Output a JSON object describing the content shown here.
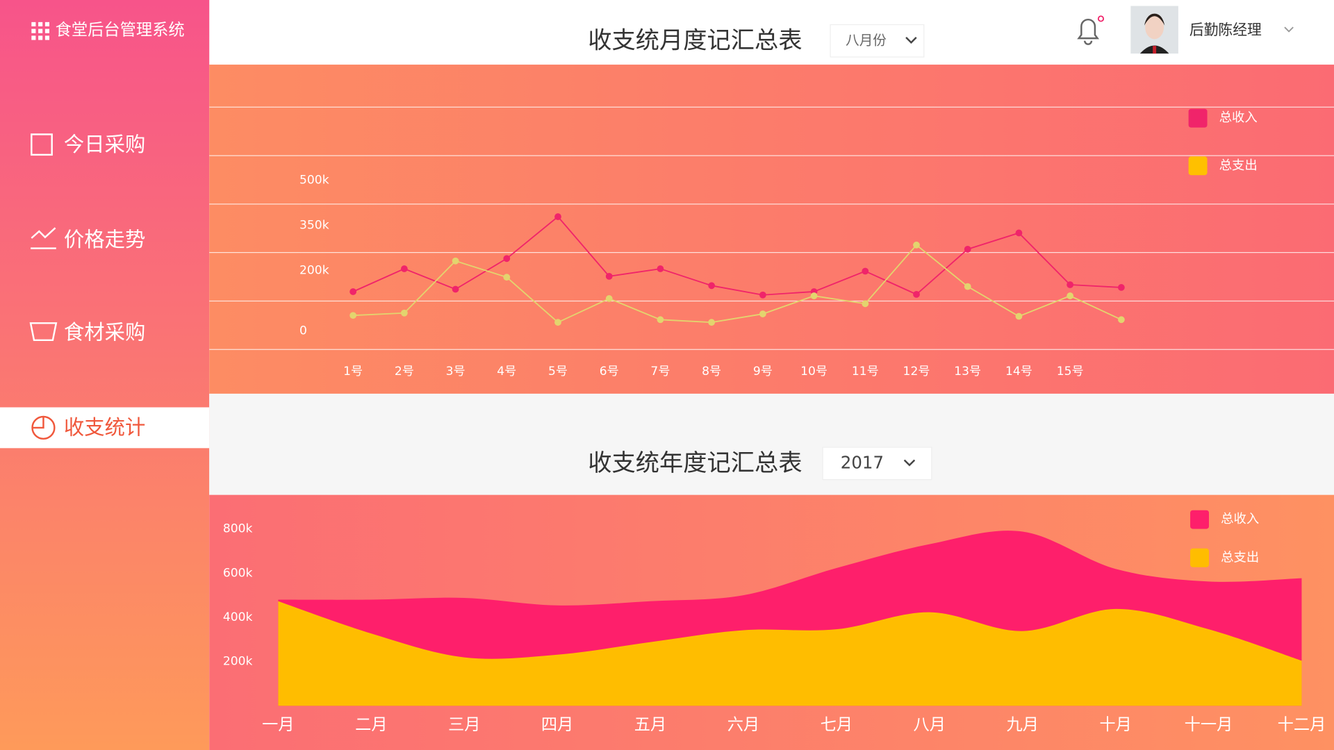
{
  "sidebar": {
    "logo": "食堂后台管理系统",
    "menu": [
      "今日采购",
      "价格走势",
      "食材采购",
      "收支统计"
    ]
  },
  "header": {
    "title": "收支统月度记汇总表",
    "month_select": "八月份",
    "user": "后勤陈经理"
  },
  "year_section": {
    "title": "收支统年度记汇总表",
    "year_select": "2017"
  },
  "chart_data": [
    {
      "type": "line",
      "categories": [
        "1号",
        "2号",
        "3号",
        "4号",
        "5号",
        "6号",
        "7号",
        "8号",
        "9号",
        "10号",
        "11号",
        "12号",
        "13号",
        "14号",
        "15号",
        null
      ],
      "series": [
        {
          "name": "总收入",
          "color": "#f0246a",
          "values": [
            130000,
            206000,
            138000,
            240000,
            379000,
            181000,
            206000,
            150000,
            119000,
            130000,
            198000,
            121000,
            271000,
            325000,
            153000,
            144000
          ]
        },
        {
          "name": "总支出",
          "color": "#ffc000",
          "line_color": "#e3d46e",
          "values": [
            51000,
            59000,
            232000,
            178000,
            28000,
            107000,
            37000,
            28000,
            56000,
            116000,
            90000,
            285000,
            147000,
            48000,
            116000,
            37000
          ]
        }
      ],
      "ylim": [
        0,
        500000
      ],
      "yticks": [
        0,
        {
          "value": 200000,
          "label": "200k"
        },
        {
          "value": 350000,
          "label": "350k"
        },
        {
          "value": 500000,
          "label": "500k"
        }
      ],
      "legend": "top-right"
    },
    {
      "type": "area",
      "categories": [
        "一月",
        "二月",
        "三月",
        "四月",
        "五月",
        "六月",
        "七月",
        "八月",
        "九月",
        "十月",
        "十一月",
        "十二月"
      ],
      "series": [
        {
          "name": "总收入",
          "color": "#fe1f6b",
          "values": [
            480000,
            480000,
            488000,
            454000,
            473000,
            500000,
            623000,
            731000,
            788000,
            619000,
            562000,
            577000
          ]
        },
        {
          "name": "总支出",
          "color": "#ffbd00",
          "values": [
            473000,
            327000,
            219000,
            231000,
            288000,
            342000,
            346000,
            423000,
            338000,
            438000,
            346000,
            204000
          ]
        }
      ],
      "ylim": [
        0,
        800000
      ],
      "yticks": [
        {
          "value": 200000,
          "label": "200k"
        },
        {
          "value": 400000,
          "label": "400k"
        },
        {
          "value": 600000,
          "label": "600k"
        },
        {
          "value": 800000,
          "label": "800k"
        }
      ],
      "legend": "top-right"
    }
  ]
}
